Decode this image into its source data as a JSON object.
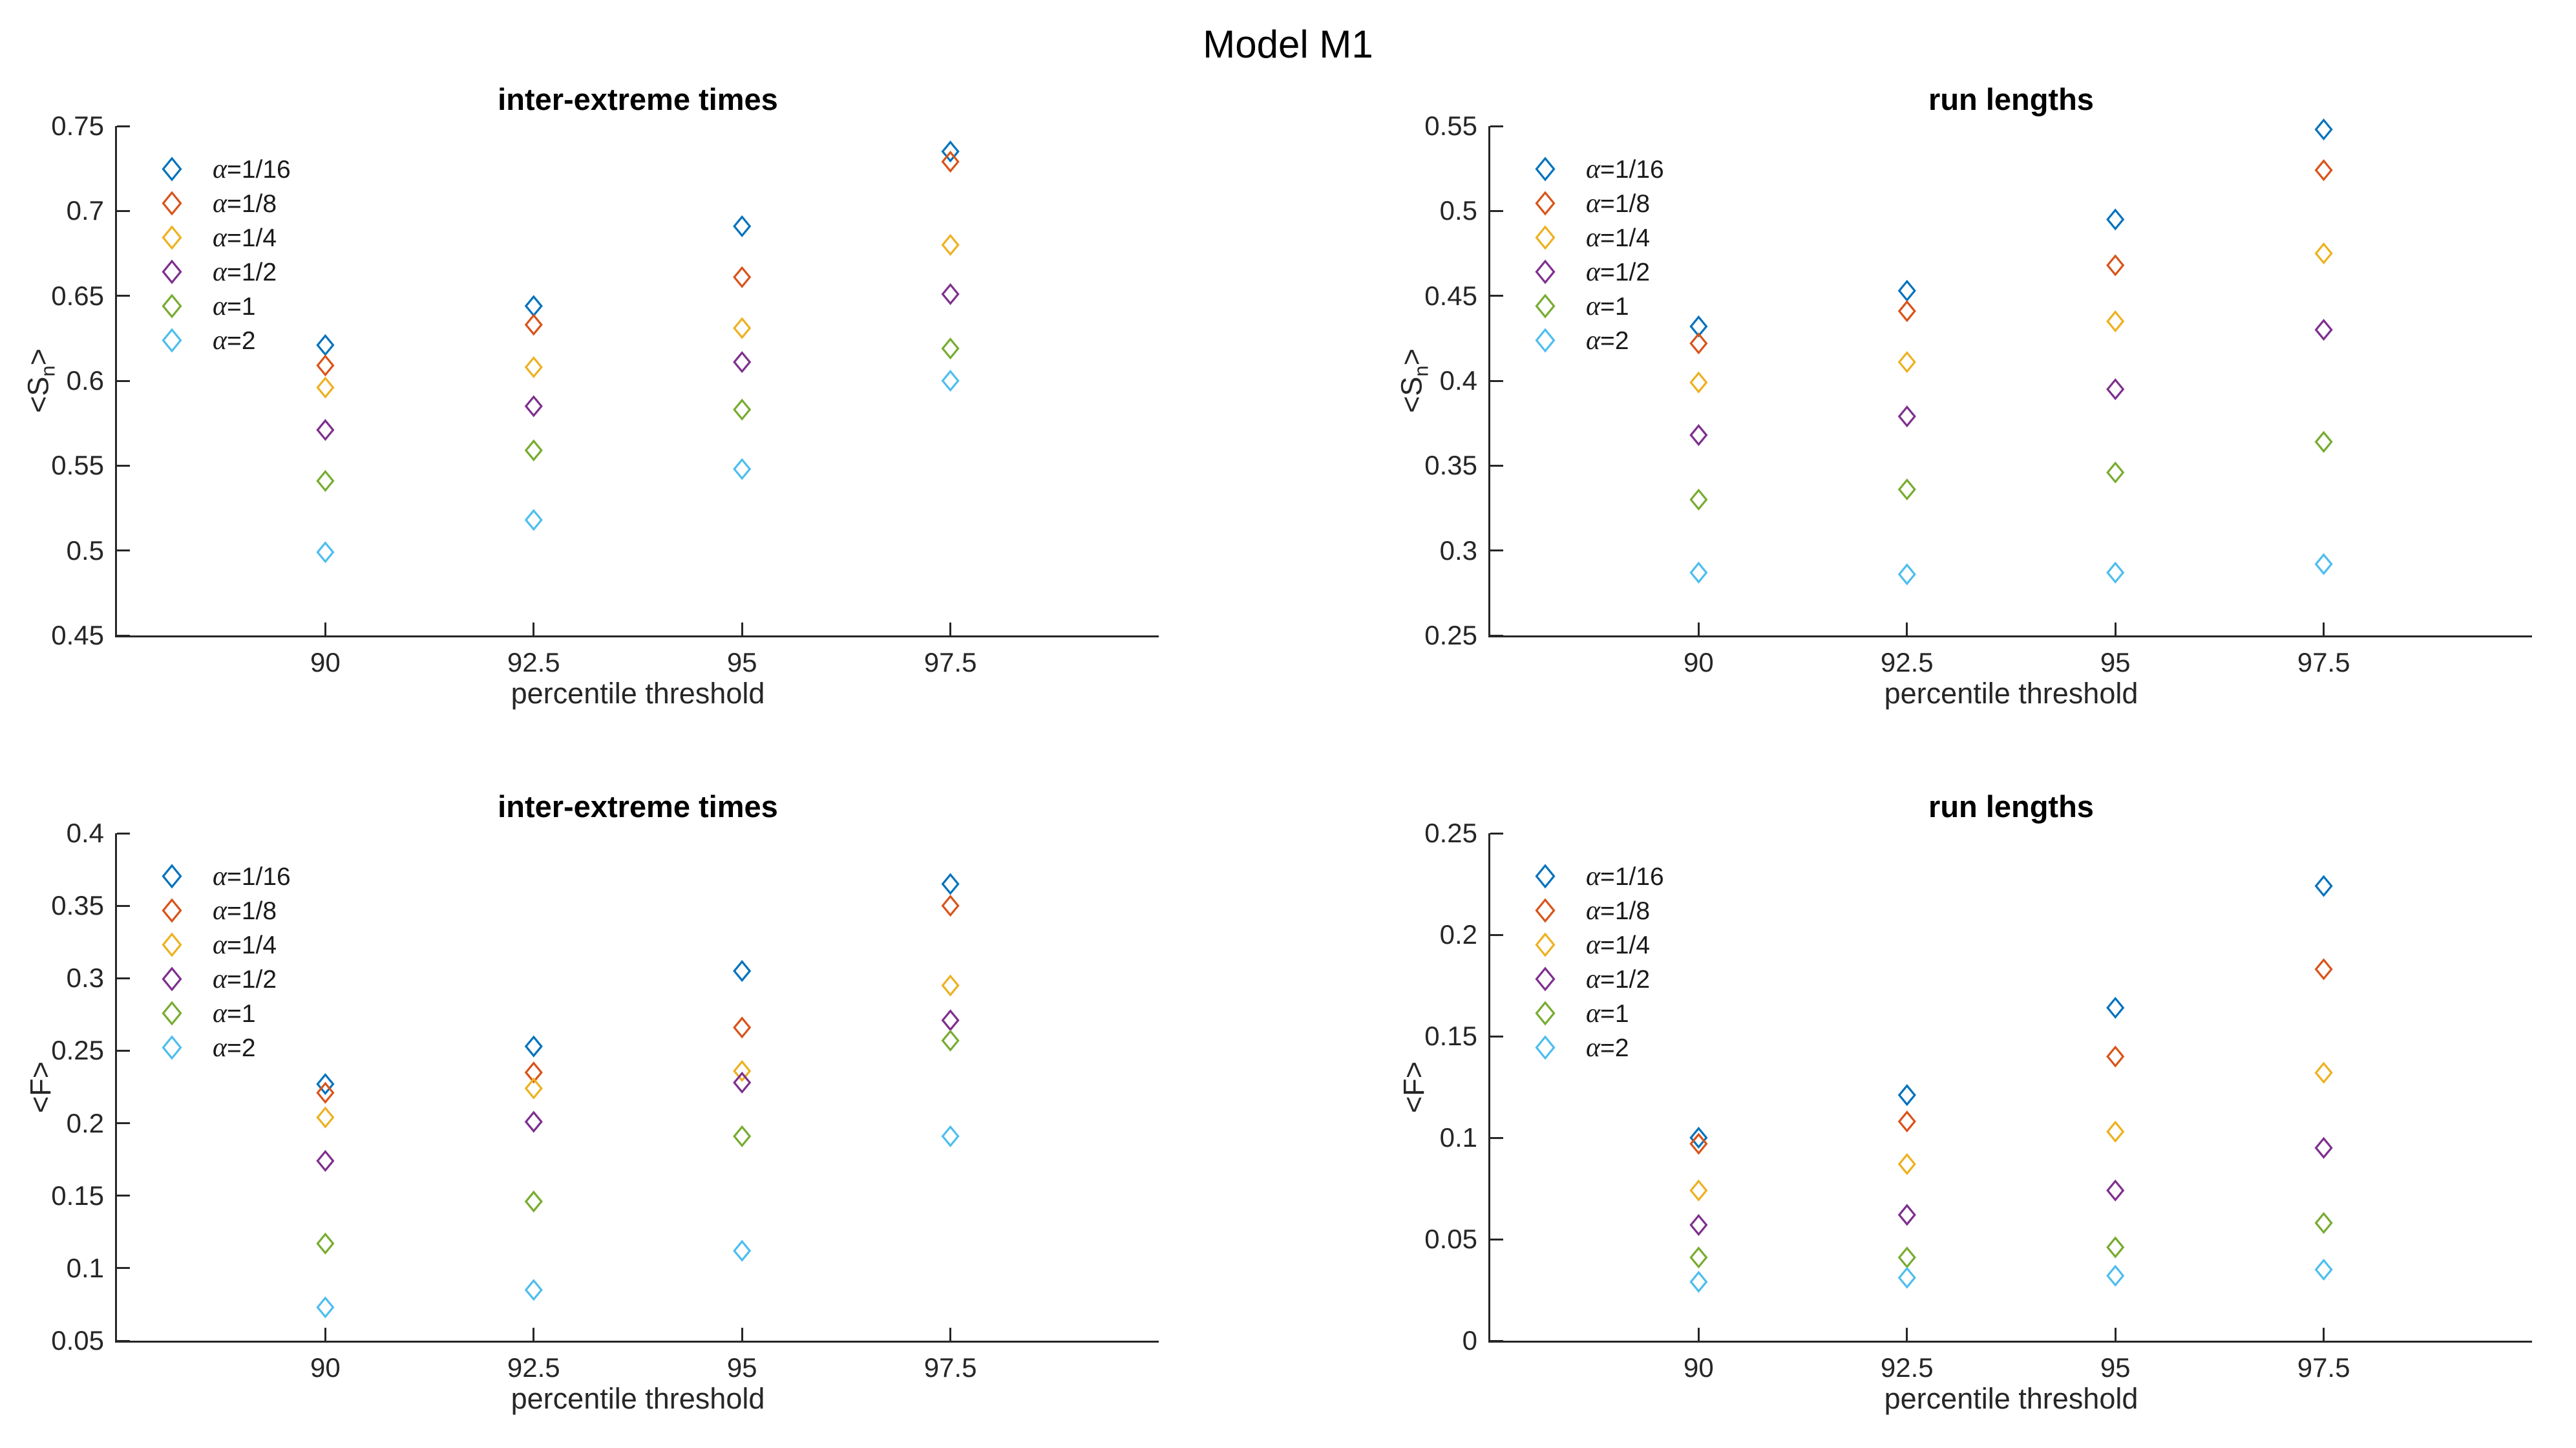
{
  "figure": {
    "title": "Model M1",
    "background": "#ffffff",
    "text_color": "#262626",
    "axis_color": "#262626"
  },
  "chart_data": [
    {
      "id": "top-left",
      "type": "scatter",
      "marker": "diamond",
      "title": "inter-extreme times",
      "xlabel": "percentile threshold",
      "ylabel": "<S_n>",
      "ylabel_main": "<S",
      "ylabel_sub": "n",
      "ylabel_end": ">",
      "grid": false,
      "legend_position": "top-left-inside",
      "xlim": [
        87.5,
        100
      ],
      "ylim": [
        0.45,
        0.75
      ],
      "x": [
        90,
        92.5,
        95,
        97.5
      ],
      "xtick_labels": [
        "90",
        "92.5",
        "95",
        "97.5"
      ],
      "yticks": [
        0.45,
        0.5,
        0.55,
        0.6,
        0.65,
        0.7,
        0.75
      ],
      "ytick_labels": [
        "0.45",
        "0.5",
        "0.55",
        "0.6",
        "0.65",
        "0.7",
        "0.75"
      ],
      "series": [
        {
          "name": "α=1/16",
          "color": "#0072BD",
          "values": [
            0.621,
            0.644,
            0.691,
            0.735
          ]
        },
        {
          "name": "α=1/8",
          "color": "#D95319",
          "values": [
            0.609,
            0.633,
            0.661,
            0.729
          ]
        },
        {
          "name": "α=1/4",
          "color": "#EDB120",
          "values": [
            0.596,
            0.608,
            0.631,
            0.68
          ]
        },
        {
          "name": "α=1/2",
          "color": "#7E2F8E",
          "values": [
            0.571,
            0.585,
            0.611,
            0.651
          ]
        },
        {
          "name": "α=1",
          "color": "#77AC30",
          "values": [
            0.541,
            0.559,
            0.583,
            0.619
          ]
        },
        {
          "name": "α=2",
          "color": "#4DBEEE",
          "values": [
            0.499,
            0.518,
            0.548,
            0.6
          ]
        }
      ]
    },
    {
      "id": "top-right",
      "type": "scatter",
      "marker": "diamond",
      "title": "run lengths",
      "xlabel": "percentile threshold",
      "ylabel": "<S_n>",
      "ylabel_main": "<S",
      "ylabel_sub": "n",
      "ylabel_end": ">",
      "grid": false,
      "legend_position": "top-left-inside",
      "xlim": [
        87.5,
        100
      ],
      "ylim": [
        0.25,
        0.55
      ],
      "x": [
        90,
        92.5,
        95,
        97.5
      ],
      "xtick_labels": [
        "90",
        "92.5",
        "95",
        "97.5"
      ],
      "yticks": [
        0.25,
        0.3,
        0.35,
        0.4,
        0.45,
        0.5,
        0.55
      ],
      "ytick_labels": [
        "0.25",
        "0.3",
        "0.35",
        "0.4",
        "0.45",
        "0.5",
        "0.55"
      ],
      "series": [
        {
          "name": "α=1/16",
          "color": "#0072BD",
          "values": [
            0.432,
            0.453,
            0.495,
            0.548
          ]
        },
        {
          "name": "α=1/8",
          "color": "#D95319",
          "values": [
            0.422,
            0.441,
            0.468,
            0.524
          ]
        },
        {
          "name": "α=1/4",
          "color": "#EDB120",
          "values": [
            0.399,
            0.411,
            0.435,
            0.475
          ]
        },
        {
          "name": "α=1/2",
          "color": "#7E2F8E",
          "values": [
            0.368,
            0.379,
            0.395,
            0.43
          ]
        },
        {
          "name": "α=1",
          "color": "#77AC30",
          "values": [
            0.33,
            0.336,
            0.346,
            0.364
          ]
        },
        {
          "name": "α=2",
          "color": "#4DBEEE",
          "values": [
            0.287,
            0.286,
            0.287,
            0.292
          ]
        }
      ]
    },
    {
      "id": "bottom-left",
      "type": "scatter",
      "marker": "diamond",
      "title": "inter-extreme times",
      "xlabel": "percentile threshold",
      "ylabel": "<F>",
      "ylabel_main": "<F",
      "ylabel_sub": "",
      "ylabel_end": ">",
      "grid": false,
      "legend_position": "top-left-inside",
      "xlim": [
        87.5,
        100
      ],
      "ylim": [
        0.05,
        0.4
      ],
      "x": [
        90,
        92.5,
        95,
        97.5
      ],
      "xtick_labels": [
        "90",
        "92.5",
        "95",
        "97.5"
      ],
      "yticks": [
        0.05,
        0.1,
        0.15,
        0.2,
        0.25,
        0.3,
        0.35,
        0.4
      ],
      "ytick_labels": [
        "0.05",
        "0.1",
        "0.15",
        "0.2",
        "0.25",
        "0.3",
        "0.35",
        "0.4"
      ],
      "series": [
        {
          "name": "α=1/16",
          "color": "#0072BD",
          "values": [
            0.227,
            0.253,
            0.305,
            0.365
          ]
        },
        {
          "name": "α=1/8",
          "color": "#D95319",
          "values": [
            0.221,
            0.235,
            0.266,
            0.35
          ]
        },
        {
          "name": "α=1/4",
          "color": "#EDB120",
          "values": [
            0.204,
            0.224,
            0.236,
            0.295
          ]
        },
        {
          "name": "α=1/2",
          "color": "#7E2F8E",
          "values": [
            0.174,
            0.201,
            0.228,
            0.271
          ]
        },
        {
          "name": "α=1",
          "color": "#77AC30",
          "values": [
            0.117,
            0.146,
            0.191,
            0.257
          ]
        },
        {
          "name": "α=2",
          "color": "#4DBEEE",
          "values": [
            0.073,
            0.085,
            0.112,
            0.191
          ]
        }
      ]
    },
    {
      "id": "bottom-right",
      "type": "scatter",
      "marker": "diamond",
      "title": "run lengths",
      "xlabel": "percentile threshold",
      "ylabel": "<F>",
      "ylabel_main": "<F",
      "ylabel_sub": "",
      "ylabel_end": ">",
      "grid": false,
      "legend_position": "top-left-inside",
      "xlim": [
        87.5,
        100
      ],
      "ylim": [
        0,
        0.25
      ],
      "x": [
        90,
        92.5,
        95,
        97.5
      ],
      "xtick_labels": [
        "90",
        "92.5",
        "95",
        "97.5"
      ],
      "yticks": [
        0,
        0.05,
        0.1,
        0.15,
        0.2,
        0.25
      ],
      "ytick_labels": [
        "0",
        "0.05",
        "0.1",
        "0.15",
        "0.2",
        "0.25"
      ],
      "series": [
        {
          "name": "α=1/16",
          "color": "#0072BD",
          "values": [
            0.1,
            0.121,
            0.164,
            0.224
          ]
        },
        {
          "name": "α=1/8",
          "color": "#D95319",
          "values": [
            0.097,
            0.108,
            0.14,
            0.183
          ]
        },
        {
          "name": "α=1/4",
          "color": "#EDB120",
          "values": [
            0.074,
            0.087,
            0.103,
            0.132
          ]
        },
        {
          "name": "α=1/2",
          "color": "#7E2F8E",
          "values": [
            0.057,
            0.062,
            0.074,
            0.095
          ]
        },
        {
          "name": "α=1",
          "color": "#77AC30",
          "values": [
            0.041,
            0.041,
            0.046,
            0.058
          ]
        },
        {
          "name": "α=2",
          "color": "#4DBEEE",
          "values": [
            0.029,
            0.031,
            0.032,
            0.035
          ]
        }
      ]
    }
  ]
}
